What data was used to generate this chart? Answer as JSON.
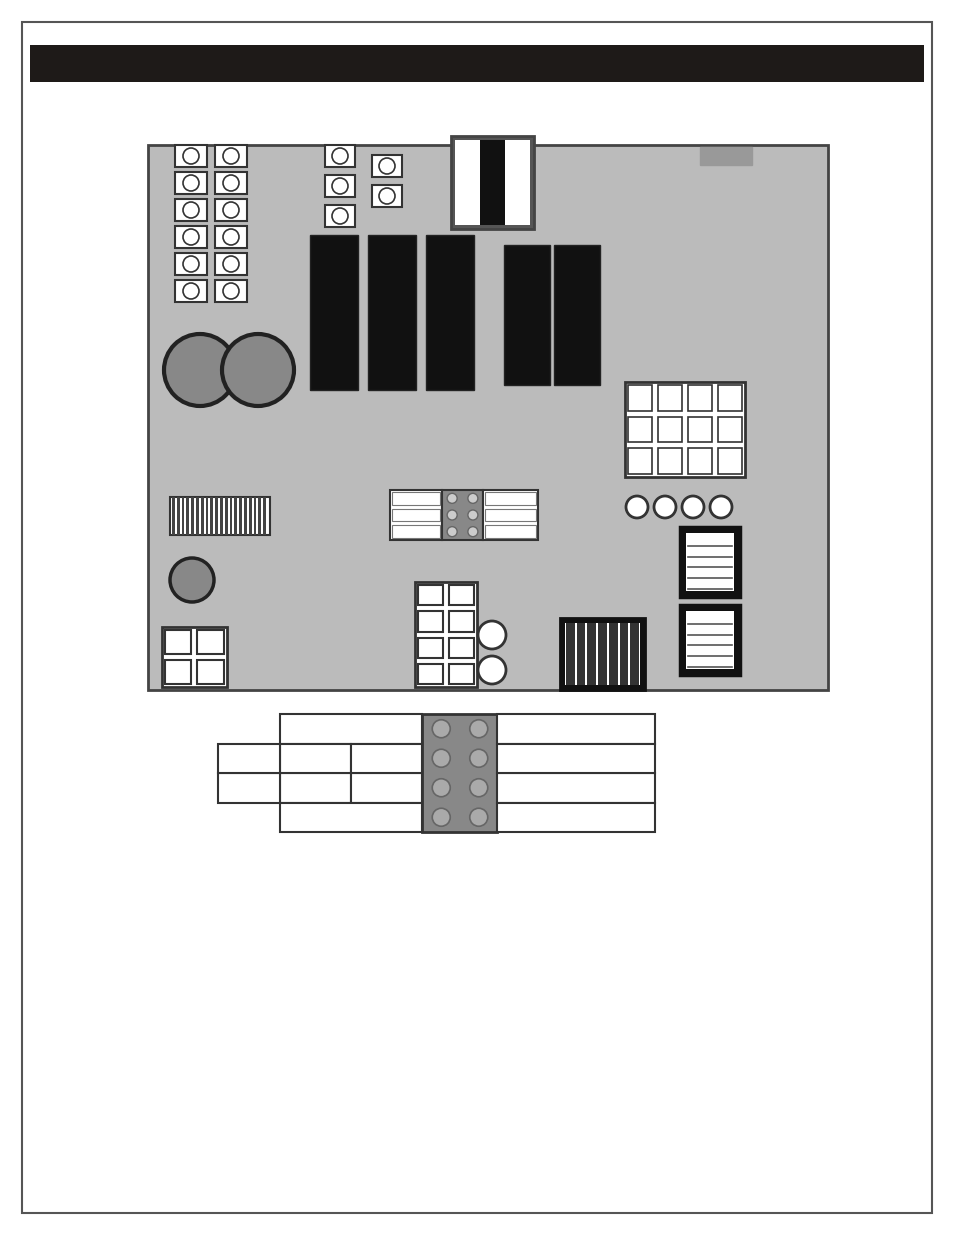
{
  "bg_color": "#ffffff",
  "header_color": "#1e1a18",
  "board_bg": "#bbbbbb",
  "dark": "#111111",
  "gray": "#888888",
  "white": "#ffffff",
  "border": "#333333"
}
